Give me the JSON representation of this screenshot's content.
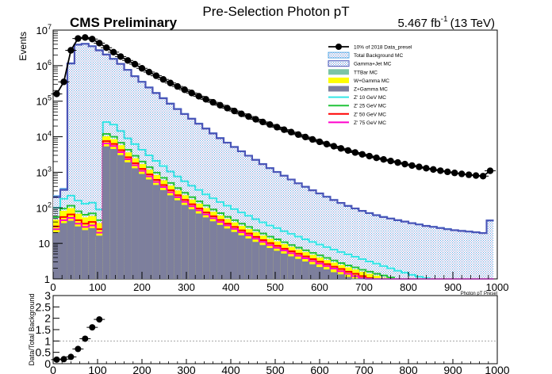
{
  "header": {
    "title": "Pre-Selection Photon pT",
    "experiment": "CMS Preliminary",
    "lumi_value": "5.467 fb",
    "lumi_exp": "-1",
    "lumi_energy": "(13 TeV)"
  },
  "colors": {
    "data": "#000000",
    "total_bg": "#5aa9e6",
    "gamma_jet": "#4a55b8",
    "ttbar": "#7cc5a6",
    "w_gamma": "#ffff00",
    "z_gamma": "#7d7f9d",
    "zp10": "#33e6e6",
    "zp25": "#22c33a",
    "zp50": "#ff0000",
    "zp75": "#ff00cc",
    "ratio_line": "#999999"
  },
  "chart_data": [
    {
      "type": "histogram",
      "title": "Pre-Selection Photon pT",
      "xlabel": "Photon pT Presel",
      "ylabel": "Events",
      "log_y": true,
      "xlim": [
        0,
        1000
      ],
      "ylim": [
        1,
        10000000
      ],
      "bin_width": 16,
      "x_ticks": [
        0,
        100,
        200,
        300,
        400,
        500,
        600,
        700,
        800,
        900,
        1000
      ],
      "y_ticks": [
        {
          "value": 1,
          "label": "1"
        },
        {
          "value": 10,
          "label": "10"
        },
        {
          "value": 100,
          "label": "10",
          "exp": "2"
        },
        {
          "value": 1000,
          "label": "10",
          "exp": "3"
        },
        {
          "value": 10000,
          "label": "10",
          "exp": "4"
        },
        {
          "value": 100000,
          "label": "10",
          "exp": "5"
        },
        {
          "value": 1000000,
          "label": "10",
          "exp": "6"
        },
        {
          "value": 10000000,
          "label": "10",
          "exp": "7"
        }
      ],
      "legend": {
        "placement": "top-right",
        "entries": [
          {
            "name": "10% of 2018 Data_presel",
            "style": "data",
            "color": "#000000"
          },
          {
            "name": "Total Background MC",
            "style": "hatch",
            "color": "#5aa9e6"
          },
          {
            "name": "Gamma+Jet MC",
            "style": "hatch",
            "color": "#4a55b8"
          },
          {
            "name": "TTBar MC",
            "style": "fill",
            "color": "#7cc5a6"
          },
          {
            "name": "W+Gamma MC",
            "style": "fill",
            "color": "#ffff00"
          },
          {
            "name": "Z+Gamma MC",
            "style": "fill",
            "color": "#7d7f9d"
          },
          {
            "name": "Z' 10 GeV MC",
            "style": "line",
            "color": "#33e6e6"
          },
          {
            "name": "Z' 25 GeV MC",
            "style": "line",
            "color": "#22c33a"
          },
          {
            "name": "Z' 50 GeV MC",
            "style": "line",
            "color": "#ff0000"
          },
          {
            "name": "Z' 75 GeV MC",
            "style": "line",
            "color": "#ff00cc"
          }
        ]
      },
      "data_points": {
        "x": [
          8,
          24,
          40,
          56,
          72,
          88,
          104,
          120,
          136,
          152,
          168,
          184,
          200,
          216,
          232,
          248,
          264,
          280,
          296,
          312,
          328,
          344,
          360,
          376,
          392,
          408,
          424,
          440,
          456,
          472,
          488,
          504,
          520,
          536,
          552,
          568,
          584,
          600,
          616,
          632,
          648,
          664,
          680,
          696,
          712,
          728,
          744,
          760,
          776,
          792,
          808,
          824,
          840,
          856,
          872,
          888,
          904,
          920,
          936,
          952,
          968,
          984
        ],
        "y": [
          160000,
          350000,
          2700000,
          5800000,
          6200000,
          5600000,
          4300000,
          3200000,
          2400000,
          1800000,
          1400000,
          1100000,
          840000,
          660000,
          520000,
          410000,
          325000,
          260000,
          210000,
          170000,
          138000,
          113000,
          93000,
          77000,
          64000,
          53000,
          44000,
          37000,
          31000,
          26000,
          22000,
          18600,
          15800,
          13500,
          11500,
          9800,
          8400,
          7200,
          6200,
          5400,
          4700,
          4100,
          3600,
          3200,
          2850,
          2550,
          2300,
          2080,
          1880,
          1700,
          1550,
          1420,
          1300,
          1200,
          1110,
          1030,
          960,
          900,
          850,
          810,
          780,
          1100
        ]
      },
      "series": [
        {
          "name": "Total Background MC",
          "style": "hatch",
          "color": "#5aa9e6",
          "values": [
            220,
            350,
            1200000,
            4000000,
            4200000,
            3600000,
            2800000,
            2100000,
            1600000,
            1150000,
            780000,
            520000,
            360000,
            250000,
            175000,
            125000,
            88000,
            62000,
            45000,
            33000,
            24000,
            17500,
            12800,
            9400,
            7000,
            5300,
            4000,
            3000,
            2300,
            1750,
            1350,
            1050,
            820,
            640,
            500,
            400,
            320,
            260,
            210,
            170,
            140,
            116,
            98,
            84,
            73,
            64,
            57,
            51,
            46,
            42,
            38,
            35,
            32,
            30,
            28,
            26,
            24,
            23,
            22,
            21,
            20,
            45
          ]
        },
        {
          "name": "Gamma+Jet MC",
          "style": "hatch-outline",
          "color": "#4a55b8",
          "values": [
            200,
            320,
            1150000,
            3900000,
            4100000,
            3500000,
            2700000,
            2050000,
            1550000,
            1120000,
            760000,
            505000,
            350000,
            243000,
            170000,
            121000,
            85000,
            60000,
            43500,
            32000,
            23200,
            17000,
            12400,
            9100,
            6800,
            5150,
            3900,
            2920,
            2240,
            1700,
            1310,
            1020,
            800,
            625,
            490,
            390,
            312,
            254,
            205,
            166,
            137,
            113,
            96,
            82,
            71,
            62,
            55,
            50,
            45,
            41,
            37,
            34,
            31,
            29,
            27,
            25,
            23.5,
            22.5,
            21.5,
            20.5,
            19.5,
            44
          ]
        },
        {
          "name": "Z' 10 GeV MC",
          "style": "line",
          "color": "#33e6e6",
          "values": [
            100,
            180,
            220,
            160,
            130,
            140,
            90,
            26000,
            22000,
            14500,
            9000,
            6200,
            4300,
            3000,
            2100,
            1500,
            1050,
            760,
            560,
            420,
            320,
            240,
            185,
            145,
            115,
            92,
            74,
            60,
            48,
            39,
            32,
            27,
            22,
            18.5,
            15.5,
            13,
            11,
            9.3,
            7.9,
            6.7,
            5.7,
            4.9,
            4.2,
            3.6,
            3.1,
            2.7,
            2.3,
            2,
            1.7,
            1.5,
            1.3,
            1.15,
            1.05,
            1,
            1,
            1,
            1,
            1,
            1,
            1,
            1,
            1
          ]
        },
        {
          "name": "Z' 25 GeV MC",
          "style": "line",
          "color": "#22c33a",
          "values": [
            55,
            95,
            115,
            80,
            64,
            70,
            45,
            12000,
            10000,
            6800,
            4300,
            2900,
            2000,
            1400,
            980,
            700,
            500,
            360,
            265,
            200,
            152,
            116,
            90,
            71,
            56,
            45,
            36,
            29,
            23.5,
            19,
            15.5,
            13,
            10.8,
            9,
            7.6,
            6.4,
            5.4,
            4.6,
            3.9,
            3.3,
            2.8,
            2.4,
            2.1,
            1.8,
            1.6,
            1.4,
            1.25,
            1.1,
            1,
            1,
            1,
            1,
            1,
            1,
            1,
            1,
            1,
            1,
            1,
            1,
            1,
            1
          ]
        },
        {
          "name": "W+Gamma MC",
          "style": "fill",
          "color": "#ffff00",
          "values": [
            45,
            80,
            95,
            66,
            52,
            57,
            36,
            10000,
            8300,
            5600,
            3500,
            2400,
            1650,
            1150,
            810,
            580,
            410,
            298,
            220,
            165,
            126,
            96,
            75,
            59,
            47,
            37.5,
            30,
            24.5,
            19.8,
            16,
            13,
            11,
            9.2,
            7.7,
            6.5,
            5.5,
            4.6,
            3.9,
            3.3,
            2.8,
            2.4,
            2.05,
            1.8,
            1.55,
            1.35,
            1.2,
            1.05,
            1,
            1,
            1,
            1,
            1,
            1,
            1,
            1,
            1,
            1,
            1,
            1,
            1,
            1,
            1
          ]
        },
        {
          "name": "Z' 50 GeV MC",
          "style": "line",
          "color": "#ff0000",
          "values": [
            30,
            55,
            65,
            45,
            36,
            40,
            25,
            7500,
            6300,
            4200,
            2650,
            1800,
            1250,
            870,
            610,
            438,
            312,
            226,
            167,
            126,
            96,
            74,
            58,
            45.5,
            36,
            29,
            23.2,
            19,
            15.3,
            12.4,
            10.2,
            8.5,
            7.1,
            6,
            5.1,
            4.3,
            3.6,
            3.05,
            2.6,
            2.2,
            1.9,
            1.6,
            1.4,
            1.2,
            1.05,
            1,
            1,
            1,
            1,
            1,
            1,
            1,
            1,
            1,
            1,
            1,
            1,
            1,
            1,
            1,
            1,
            1
          ]
        },
        {
          "name": "Z' 75 GeV MC",
          "style": "line",
          "color": "#ff00cc",
          "values": [
            25,
            45,
            52,
            36,
            29,
            32,
            20,
            6500,
            5500,
            3700,
            2330,
            1580,
            1100,
            765,
            536,
            385,
            274,
            199,
            147,
            111,
            85,
            65,
            51,
            40,
            32,
            25.5,
            20.5,
            16.7,
            13.5,
            11,
            9,
            7.5,
            6.3,
            5.3,
            4.5,
            3.8,
            3.2,
            2.7,
            2.3,
            1.95,
            1.65,
            1.4,
            1.2,
            1.05,
            1,
            1,
            1,
            1,
            1,
            1,
            1,
            1,
            1,
            1,
            1,
            1,
            1,
            1,
            1,
            1,
            1,
            1
          ]
        },
        {
          "name": "Z+Gamma MC",
          "style": "fill",
          "color": "#7d7f9d",
          "values": [
            20,
            36,
            42,
            29,
            23,
            26,
            16,
            5200,
            4400,
            2950,
            1850,
            1260,
            870,
            608,
            427,
            306,
            218,
            158,
            117,
            88,
            67,
            52,
            40.5,
            32,
            25.4,
            20.3,
            16.3,
            13.3,
            10.7,
            8.7,
            7.2,
            6,
            5,
            4.2,
            3.55,
            3,
            2.5,
            2.1,
            1.8,
            1.5,
            1.3,
            1.1,
            1,
            1,
            1,
            1,
            1,
            1,
            1,
            1,
            1,
            1,
            1,
            1,
            1,
            1,
            1,
            1,
            1,
            1,
            1,
            1
          ]
        }
      ]
    },
    {
      "type": "scatter",
      "ylabel": "Data/Total Background",
      "xlim": [
        0,
        1000
      ],
      "ylim": [
        0,
        3
      ],
      "x_ticks": [
        0,
        100,
        200,
        300,
        400,
        500,
        600,
        700,
        800,
        900,
        1000
      ],
      "y_ticks": [
        {
          "value": 0,
          "label": "0"
        },
        {
          "value": 0.5,
          "label": "0.5"
        },
        {
          "value": 1,
          "label": "1"
        },
        {
          "value": 1.5,
          "label": "1.5"
        },
        {
          "value": 2,
          "label": "2"
        },
        {
          "value": 2.5,
          "label": "2.5"
        },
        {
          "value": 3,
          "label": "3"
        }
      ],
      "reference_line": 1,
      "x": [
        8,
        24,
        40,
        56,
        72,
        88,
        104
      ],
      "y": [
        0.18,
        0.2,
        0.3,
        0.65,
        1.1,
        1.6,
        1.95
      ]
    }
  ]
}
